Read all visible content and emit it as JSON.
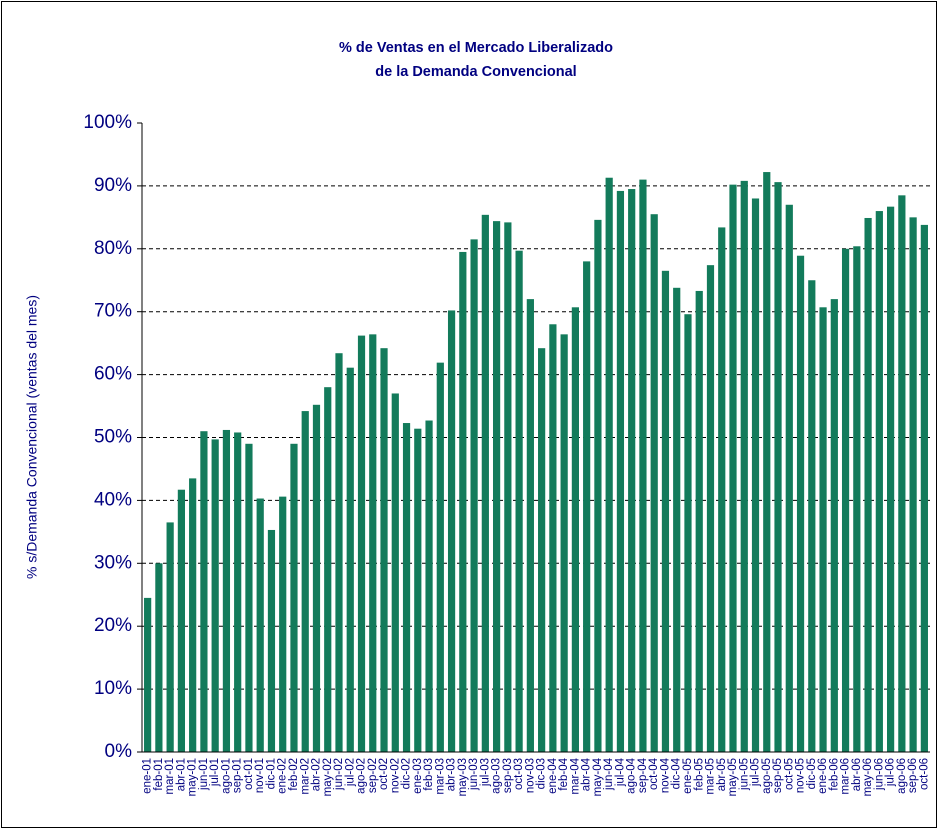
{
  "chart_data": {
    "type": "bar",
    "title": [
      "%  de Ventas en el Mercado Liberalizado",
      "de la Demanda Convencional"
    ],
    "y_label": "% s/Demanda Convencional (ventas del mes)",
    "categories": [
      "ene-01",
      "feb-01",
      "mar-01",
      "abr-01",
      "may-01",
      "jun-01",
      "jul-01",
      "ago-01",
      "sep-01",
      "oct-01",
      "nov-01",
      "dic-01",
      "ene-02",
      "feb-02",
      "mar-02",
      "abr-02",
      "may-02",
      "jun-02",
      "jul-02",
      "ago-02",
      "sep-02",
      "oct-02",
      "nov-02",
      "dic-02",
      "ene-03",
      "feb-03",
      "mar-03",
      "abr-03",
      "may-03",
      "jun-03",
      "jul-03",
      "ago-03",
      "sep-03",
      "oct-03",
      "nov-03",
      "dic-03",
      "ene-04",
      "feb-04",
      "mar-04",
      "abr-04",
      "may-04",
      "jun-04",
      "jul-04",
      "ago-04",
      "sep-04",
      "oct-04",
      "nov-04",
      "dic-04",
      "ene-05",
      "feb-05",
      "mar-05",
      "abr-05",
      "may-05",
      "jun-05",
      "jul-05",
      "ago-05",
      "sep-05",
      "oct-05",
      "nov-05",
      "dic-05",
      "ene-06",
      "feb-06",
      "mar-06",
      "abr-06",
      "may-06",
      "jun-06",
      "jul-06",
      "ago-06",
      "sep-06",
      "oct-06"
    ],
    "values": [
      24.5,
      30,
      36.5,
      41.7,
      43.5,
      51,
      49.7,
      51.2,
      50.8,
      49,
      40.3,
      35.3,
      40.6,
      49,
      54.2,
      55.2,
      58,
      63.4,
      61.1,
      66.2,
      66.4,
      64.2,
      57,
      52.3,
      51.4,
      52.7,
      61.9,
      70.2,
      79.5,
      81.5,
      85.4,
      84.4,
      84.2,
      79.7,
      72,
      64.2,
      68,
      66.4,
      70.7,
      78,
      84.6,
      91.3,
      89.2,
      89.5,
      91,
      85.5,
      76.5,
      73.8,
      69.6,
      73.3,
      77.4,
      83.4,
      90.2,
      90.8,
      88,
      92.2,
      90.6,
      87,
      78.9,
      75,
      70.7,
      72,
      80,
      80.4,
      84.9,
      86,
      86.7,
      88.5,
      85,
      83.8
    ],
    "color": "#137b5b",
    "ylim": [
      0,
      100
    ],
    "yticks": [
      {
        "value": 0,
        "label": "0%"
      },
      {
        "value": 10,
        "label": "10%"
      },
      {
        "value": 20,
        "label": "20%"
      },
      {
        "value": 30,
        "label": "30%"
      },
      {
        "value": 40,
        "label": "40%"
      },
      {
        "value": 50,
        "label": "50%"
      },
      {
        "value": 60,
        "label": "60%"
      },
      {
        "value": 70,
        "label": "70%"
      },
      {
        "value": 80,
        "label": "80%"
      },
      {
        "value": 90,
        "label": "90%"
      },
      {
        "value": 100,
        "label": "100%"
      }
    ],
    "grid": true
  }
}
